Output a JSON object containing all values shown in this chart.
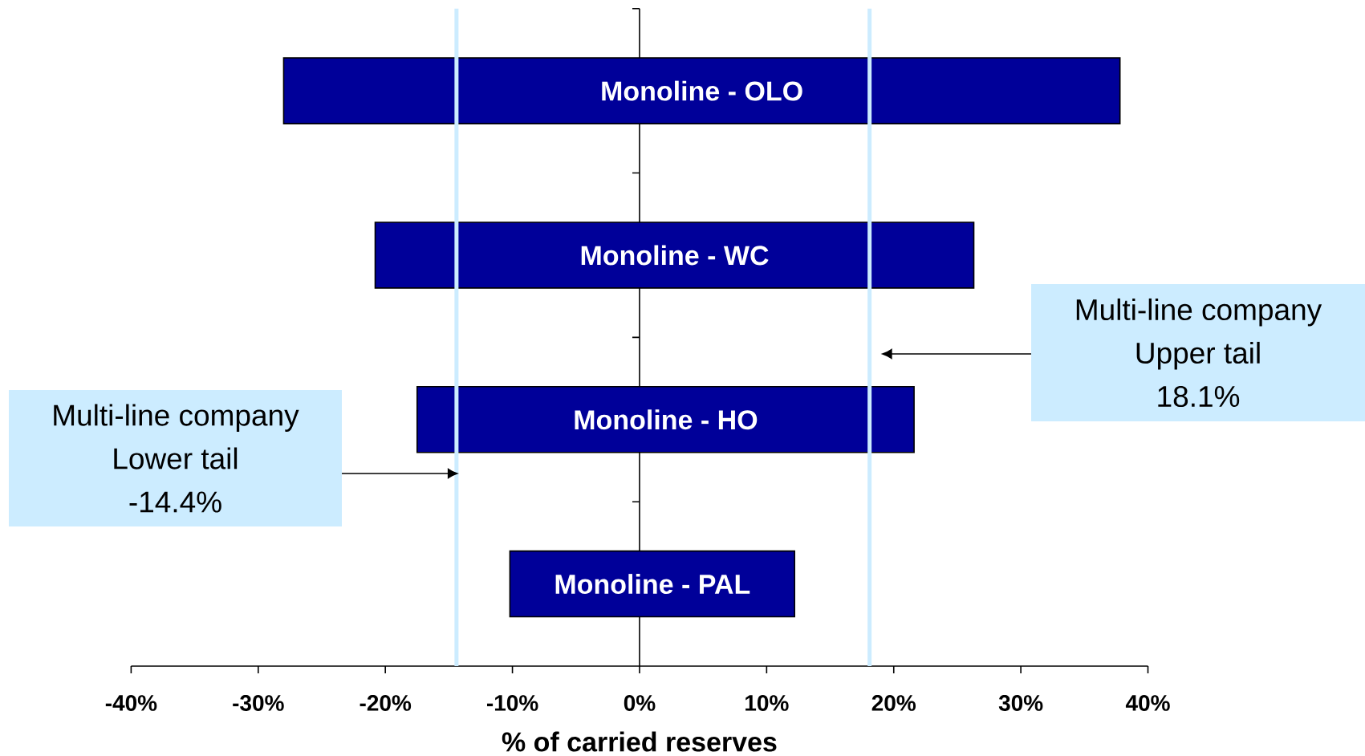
{
  "chart_data": {
    "type": "bar",
    "orientation": "horizontal",
    "categories": [
      "Monoline - OLO",
      "Monoline - WC",
      "Monoline - HO",
      "Monoline - PAL"
    ],
    "base": [
      -28.0,
      -20.8,
      -17.5,
      -10.2
    ],
    "values": [
      65.8,
      47.1,
      39.1,
      22.4
    ],
    "color": "#000099",
    "xlabel": "% of carried reserves",
    "xlim": [
      -40,
      40
    ],
    "xticks": [
      {
        "value": -40,
        "label": "-40%"
      },
      {
        "value": -30,
        "label": "-30%"
      },
      {
        "value": -20,
        "label": "-20%"
      },
      {
        "value": -10,
        "label": "-10%"
      },
      {
        "value": 0,
        "label": "0%"
      },
      {
        "value": 10,
        "label": "10%"
      },
      {
        "value": 20,
        "label": "20%"
      },
      {
        "value": 30,
        "label": "30%"
      },
      {
        "value": 40,
        "label": "40%"
      }
    ],
    "ref_lines": [
      {
        "axis": "x",
        "value": -14.4,
        "color": "#ccecff"
      },
      {
        "axis": "x",
        "value": 18.1,
        "color": "#ccecff"
      }
    ],
    "annotations": [
      "Multi-line company",
      "Lower tail",
      "-14.4%",
      "Multi-line company",
      "Upper tail",
      "18.1%"
    ]
  }
}
